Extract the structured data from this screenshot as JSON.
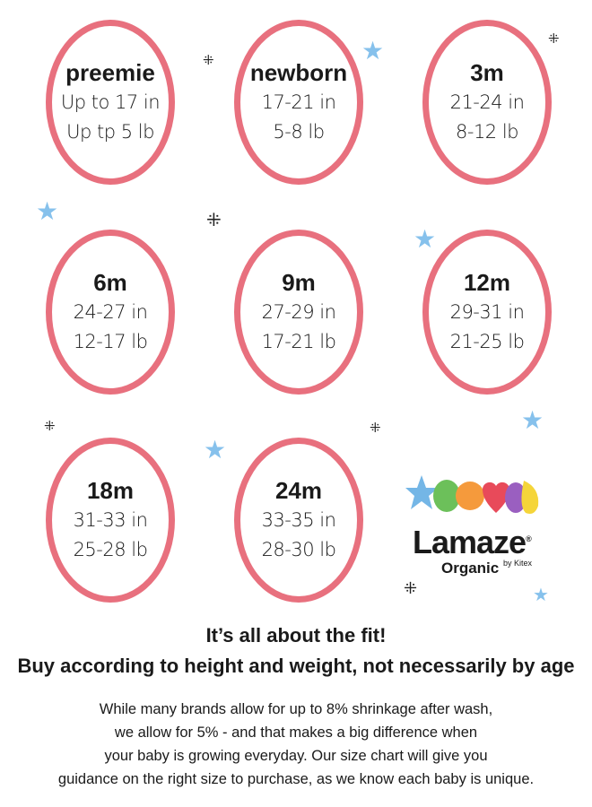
{
  "sizes": [
    {
      "size": "preemie",
      "height": "Up to 17 in",
      "weight": "Up tp 5 lb"
    },
    {
      "size": "newborn",
      "height": "17-21 in",
      "weight": "5-8 lb"
    },
    {
      "size": "3m",
      "height": "21-24 in",
      "weight": "8-12 lb"
    },
    {
      "size": "6m",
      "height": "24-27 in",
      "weight": "12-17 lb"
    },
    {
      "size": "9m",
      "height": "27-29 in",
      "weight": "17-21 lb"
    },
    {
      "size": "12m",
      "height": "29-31 in",
      "weight": "21-25 lb"
    },
    {
      "size": "18m",
      "height": "31-33 in",
      "weight": "25-28 lb"
    },
    {
      "size": "24m",
      "height": "33-35 in",
      "weight": "28-30 lb"
    }
  ],
  "logo": {
    "brand": "Lamaze",
    "registered": "®",
    "line2": "Organic",
    "by": "by Kitex"
  },
  "headline": [
    "It’s all about the fit!",
    "Buy according to height and weight, not necessarily by age"
  ],
  "body": [
    "While many brands allow for up to 8% shrinkage after wash,",
    "we allow for 5% - and that makes a big difference when",
    "your baby is growing everyday. Our size chart will give you",
    "guidance on the right size to purchase, as we know each baby is unique."
  ],
  "colors": {
    "oval": "#e8707e",
    "star": "#86c1ec"
  }
}
